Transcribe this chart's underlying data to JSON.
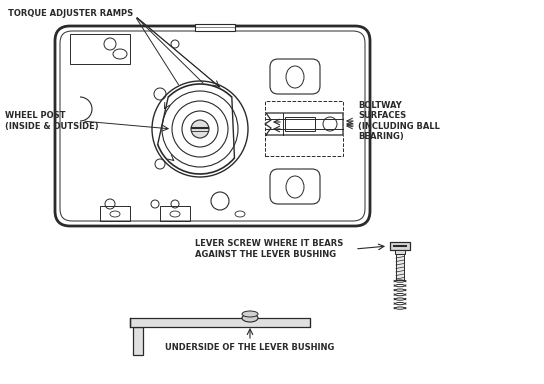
{
  "bg_color": "#ffffff",
  "line_color": "#2a2a2a",
  "labels": {
    "torque": "TORQUE ADJUSTER RAMPS",
    "wheel_post": "WHEEL POST\n(INSIDE & OUTSIDE)",
    "boltway": "BOLTWAY\nSURFACES\n(INCLUDING BALL\nBEARING)",
    "lever_screw": "LEVER SCREW WHERE IT BEARS\nAGAINST THE LEVER BUSHING",
    "underside": "UNDERSIDE OF THE LEVER BUSHING"
  },
  "figsize": [
    5.44,
    3.84
  ],
  "dpi": 100
}
